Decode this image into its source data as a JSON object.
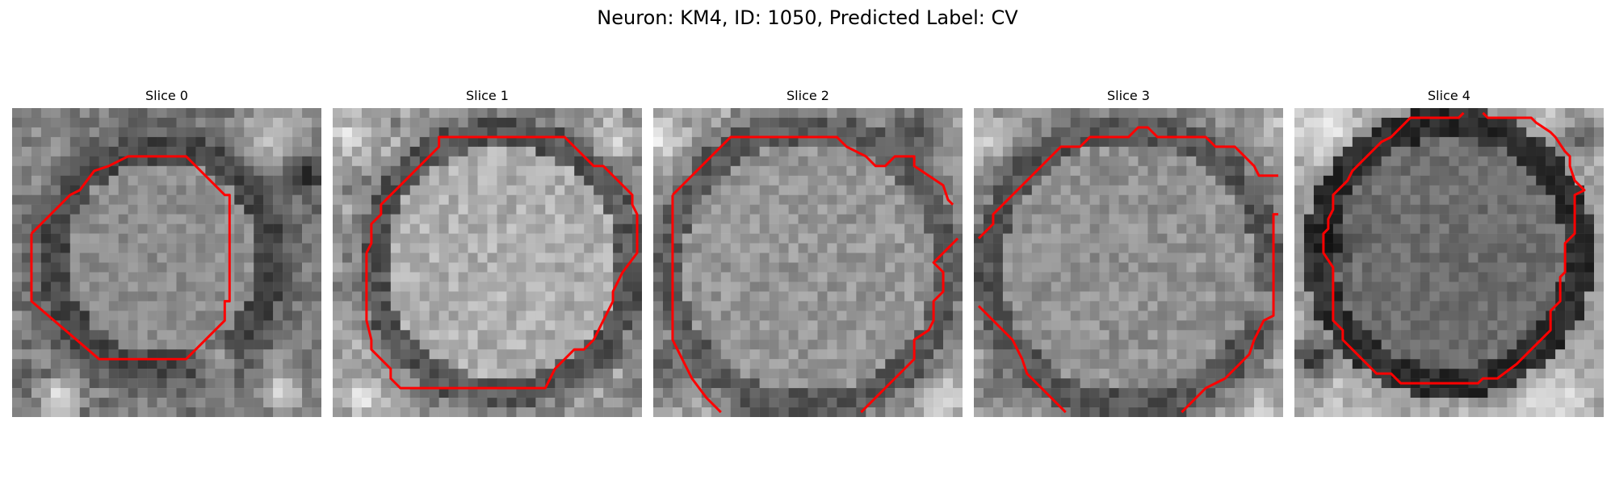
{
  "figure": {
    "title": "Neuron: KM4, ID: 1050, Predicted Label: CV",
    "contour_color": "#ff0000",
    "panels": [
      {
        "title": "Slice 0"
      },
      {
        "title": "Slice 1"
      },
      {
        "title": "Slice 2"
      },
      {
        "title": "Slice 3"
      },
      {
        "title": "Slice 4"
      }
    ]
  }
}
